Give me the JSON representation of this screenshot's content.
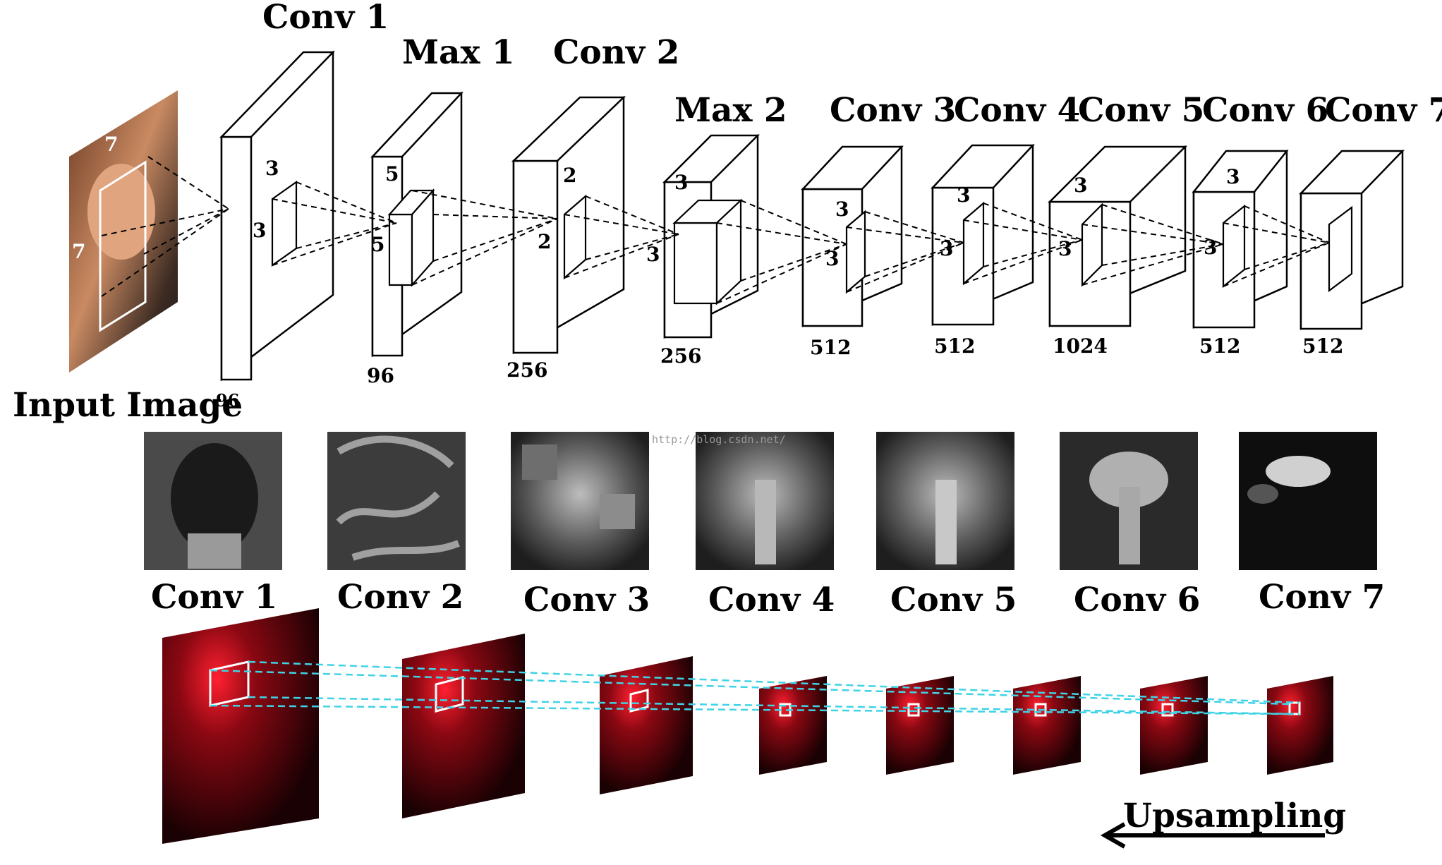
{
  "top_row": {
    "input_label": "Input Image",
    "input_kernel": "7",
    "layers": [
      {
        "name": "Conv 1",
        "kernel": "3",
        "depth": "96"
      },
      {
        "name": "Max 1",
        "kernel": "5",
        "depth": "96"
      },
      {
        "name": "Conv 2",
        "kernel": "2",
        "depth": "256"
      },
      {
        "name": "Max 2",
        "kernel": "3",
        "depth": "256"
      },
      {
        "name": "Conv 3",
        "kernel": "3",
        "depth": "512"
      },
      {
        "name": "Conv 4",
        "kernel": "3",
        "depth": "512"
      },
      {
        "name": "Conv 5",
        "kernel": "3",
        "depth": "1024"
      },
      {
        "name": "Conv 6",
        "kernel": "3",
        "depth": "512"
      },
      {
        "name": "Conv 7",
        "kernel": "",
        "depth": "512"
      }
    ]
  },
  "middle_row": {
    "labels": [
      "Conv 1",
      "Conv 2",
      "Conv 3",
      "Conv 4",
      "Conv 5",
      "Conv 6",
      "Conv 7"
    ],
    "watermark": "http://blog.csdn.net/"
  },
  "bottom_row": {
    "arrow_label": "Upsampling"
  },
  "colors": {
    "connector": "#000000",
    "projection": "#3fd3e6",
    "heatmap": "#d01020"
  }
}
